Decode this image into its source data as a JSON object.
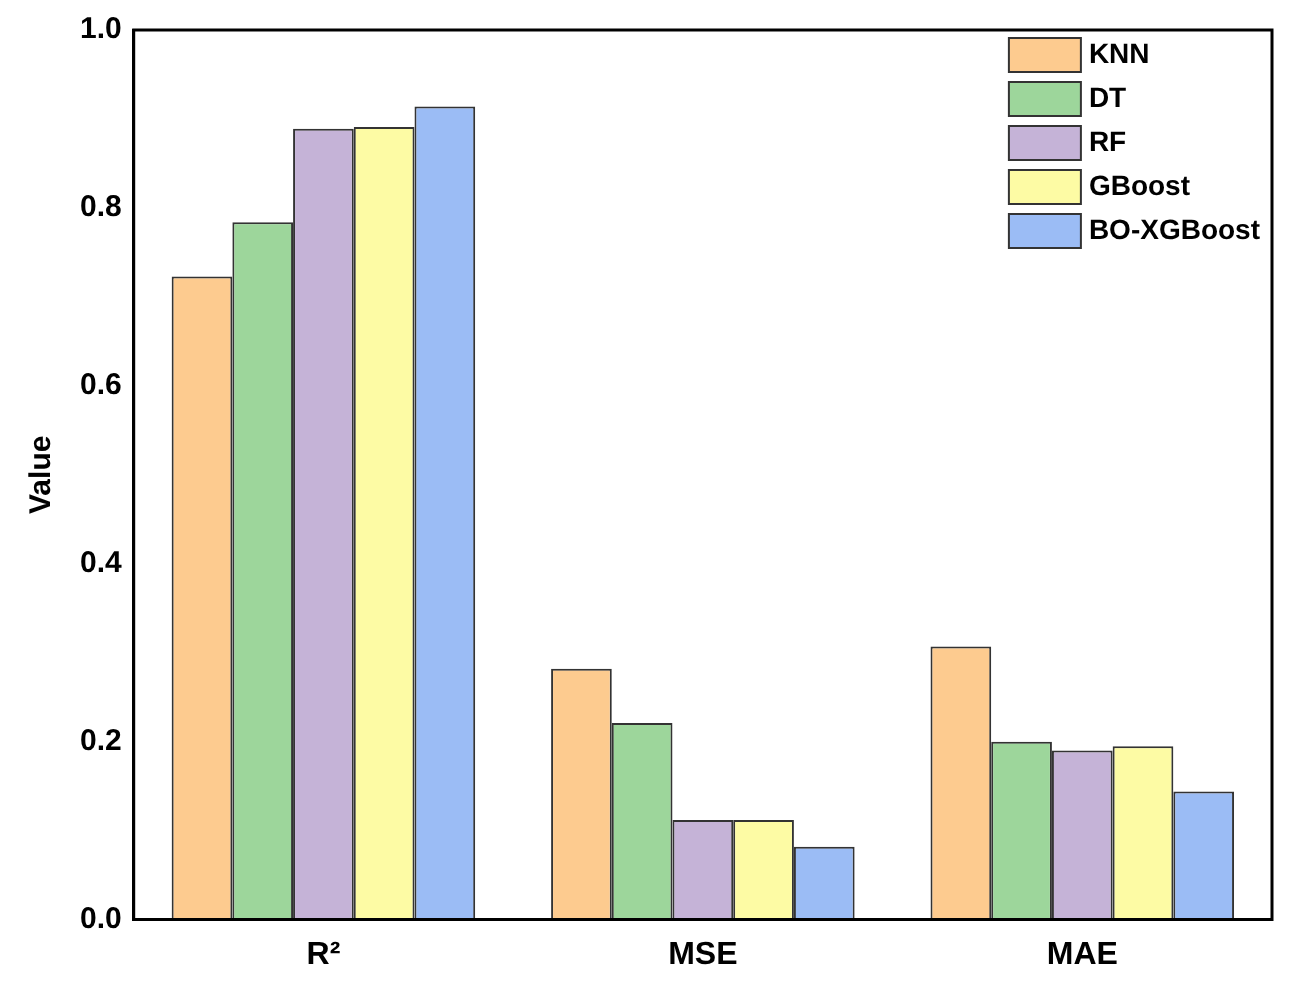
{
  "chart_data": {
    "type": "bar",
    "ylabel": "Value",
    "categories": [
      "R²",
      "MSE",
      "MAE"
    ],
    "series": [
      {
        "name": "KNN",
        "color": "#fdcb8f",
        "values": [
          0.723,
          0.282,
          0.307
        ]
      },
      {
        "name": "DT",
        "color": "#9dd69b",
        "values": [
          0.784,
          0.221,
          0.2
        ]
      },
      {
        "name": "RF",
        "color": "#c5b3d7",
        "values": [
          0.889,
          0.112,
          0.19
        ]
      },
      {
        "name": "GBoost",
        "color": "#fdfba4",
        "values": [
          0.891,
          0.112,
          0.195
        ]
      },
      {
        "name": "BO-XGBoost",
        "color": "#9bbcf5",
        "values": [
          0.914,
          0.082,
          0.144
        ]
      }
    ],
    "ylim": [
      0,
      1
    ],
    "yticks": [
      {
        "value": 0,
        "label": "0.0"
      },
      {
        "value": 0.2,
        "label": "0.2"
      },
      {
        "value": 0.4,
        "label": "0.4"
      },
      {
        "value": 0.6,
        "label": "0.6"
      },
      {
        "value": 0.8,
        "label": "0.8"
      },
      {
        "value": 1,
        "label": "1.0"
      }
    ],
    "grid": false,
    "legend": "top right"
  }
}
